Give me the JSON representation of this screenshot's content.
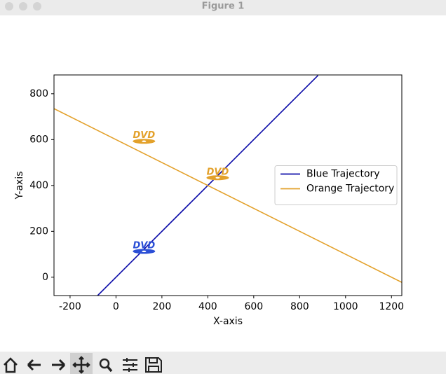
{
  "window_title": "Figure 1",
  "chart_data": {
    "type": "line",
    "xlabel": "X-axis",
    "ylabel": "Y-axis",
    "xlim": [
      -270,
      1245
    ],
    "ylim": [
      -80,
      882
    ],
    "xticks": [
      -200,
      0,
      200,
      400,
      600,
      800,
      1000,
      1200
    ],
    "yticks": [
      0,
      200,
      400,
      600,
      800
    ],
    "legend": "center right",
    "series": [
      {
        "name": "Blue Trajectory",
        "color": "#0a0aa8",
        "x": [
          -80,
          880
        ],
        "values": [
          -80,
          880
        ]
      },
      {
        "name": "Orange Trajectory",
        "color": "#e3a12b",
        "x": [
          -270,
          1245
        ],
        "values": [
          735,
          -22.5
        ]
      }
    ],
    "logos": [
      {
        "label": "DVD",
        "x": 122,
        "y": 608,
        "color": "#e3a12b"
      },
      {
        "label": "DVD",
        "x": 443,
        "y": 449,
        "color": "#e3a12b"
      },
      {
        "label": "DVD",
        "x": 122,
        "y": 128,
        "color": "#2b4fd6"
      }
    ]
  }
}
